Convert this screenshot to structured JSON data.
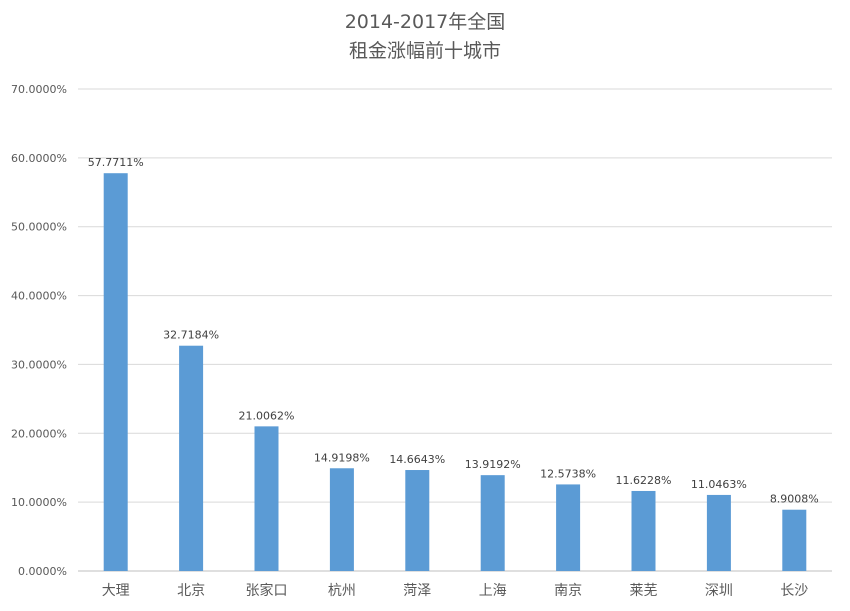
{
  "chart_data": {
    "type": "bar",
    "title_line1": "2014-2017年全国",
    "title_line2": "租金涨幅前十城市",
    "xlabel": "",
    "ylabel": "",
    "categories": [
      "大理",
      "北京",
      "张家口",
      "杭州",
      "菏泽",
      "上海",
      "南京",
      "莱芜",
      "深圳",
      "长沙"
    ],
    "values": [
      57.7711,
      32.7184,
      21.0062,
      14.9198,
      14.6643,
      13.9192,
      12.5738,
      11.6228,
      11.0463,
      8.9008
    ],
    "data_labels": [
      "57.7711%",
      "32.7184%",
      "21.0062%",
      "14.9198%",
      "14.6643%",
      "13.9192%",
      "12.5738%",
      "11.6228%",
      "11.0463%",
      "8.9008%"
    ],
    "y_ticks": [
      "0.0000%",
      "10.0000%",
      "20.0000%",
      "30.0000%",
      "40.0000%",
      "50.0000%",
      "60.0000%",
      "70.0000%"
    ],
    "ylim": [
      0,
      70
    ],
    "grid": true,
    "legend": "none",
    "bar_color": "#5b9bd5",
    "grid_color": "#d9d9d9",
    "text_color": "#595959"
  }
}
